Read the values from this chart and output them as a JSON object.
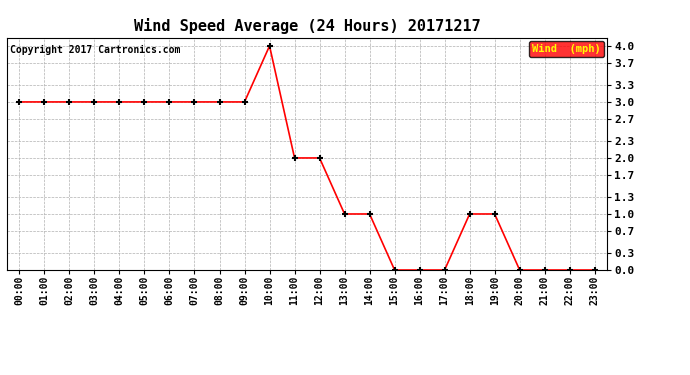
{
  "title": "Wind Speed Average (24 Hours) 20171217",
  "copyright": "Copyright 2017 Cartronics.com",
  "legend_label": "Wind  (mph)",
  "x_labels": [
    "00:00",
    "01:00",
    "02:00",
    "03:00",
    "04:00",
    "05:00",
    "06:00",
    "07:00",
    "08:00",
    "09:00",
    "10:00",
    "11:00",
    "12:00",
    "13:00",
    "14:00",
    "15:00",
    "16:00",
    "17:00",
    "18:00",
    "19:00",
    "20:00",
    "21:00",
    "22:00",
    "23:00"
  ],
  "y_values": [
    3.0,
    3.0,
    3.0,
    3.0,
    3.0,
    3.0,
    3.0,
    3.0,
    3.0,
    3.0,
    4.0,
    2.0,
    2.0,
    1.0,
    1.0,
    0.0,
    0.0,
    0.0,
    1.0,
    1.0,
    0.0,
    0.0,
    0.0,
    0.0
  ],
  "line_color": "#ff0000",
  "marker_color": "#000000",
  "marker_style": "+",
  "ylim": [
    0.0,
    4.15
  ],
  "yticks": [
    0.0,
    0.3,
    0.7,
    1.0,
    1.3,
    1.7,
    2.0,
    2.3,
    2.7,
    3.0,
    3.3,
    3.7,
    4.0
  ],
  "ytick_labels": [
    "0.0",
    "0.3",
    "0.7",
    "1.0",
    "1.3",
    "1.7",
    "2.0",
    "2.3",
    "2.7",
    "3.0",
    "3.3",
    "3.7",
    "4.0"
  ],
  "background_color": "#ffffff",
  "grid_color": "#b0b0b0",
  "title_fontsize": 11,
  "tick_fontsize": 7,
  "copyright_fontsize": 7,
  "legend_bg": "#ff0000",
  "legend_text_color": "#ffff00",
  "legend_fontsize": 7.5,
  "line_width": 1.2,
  "marker_size": 4
}
